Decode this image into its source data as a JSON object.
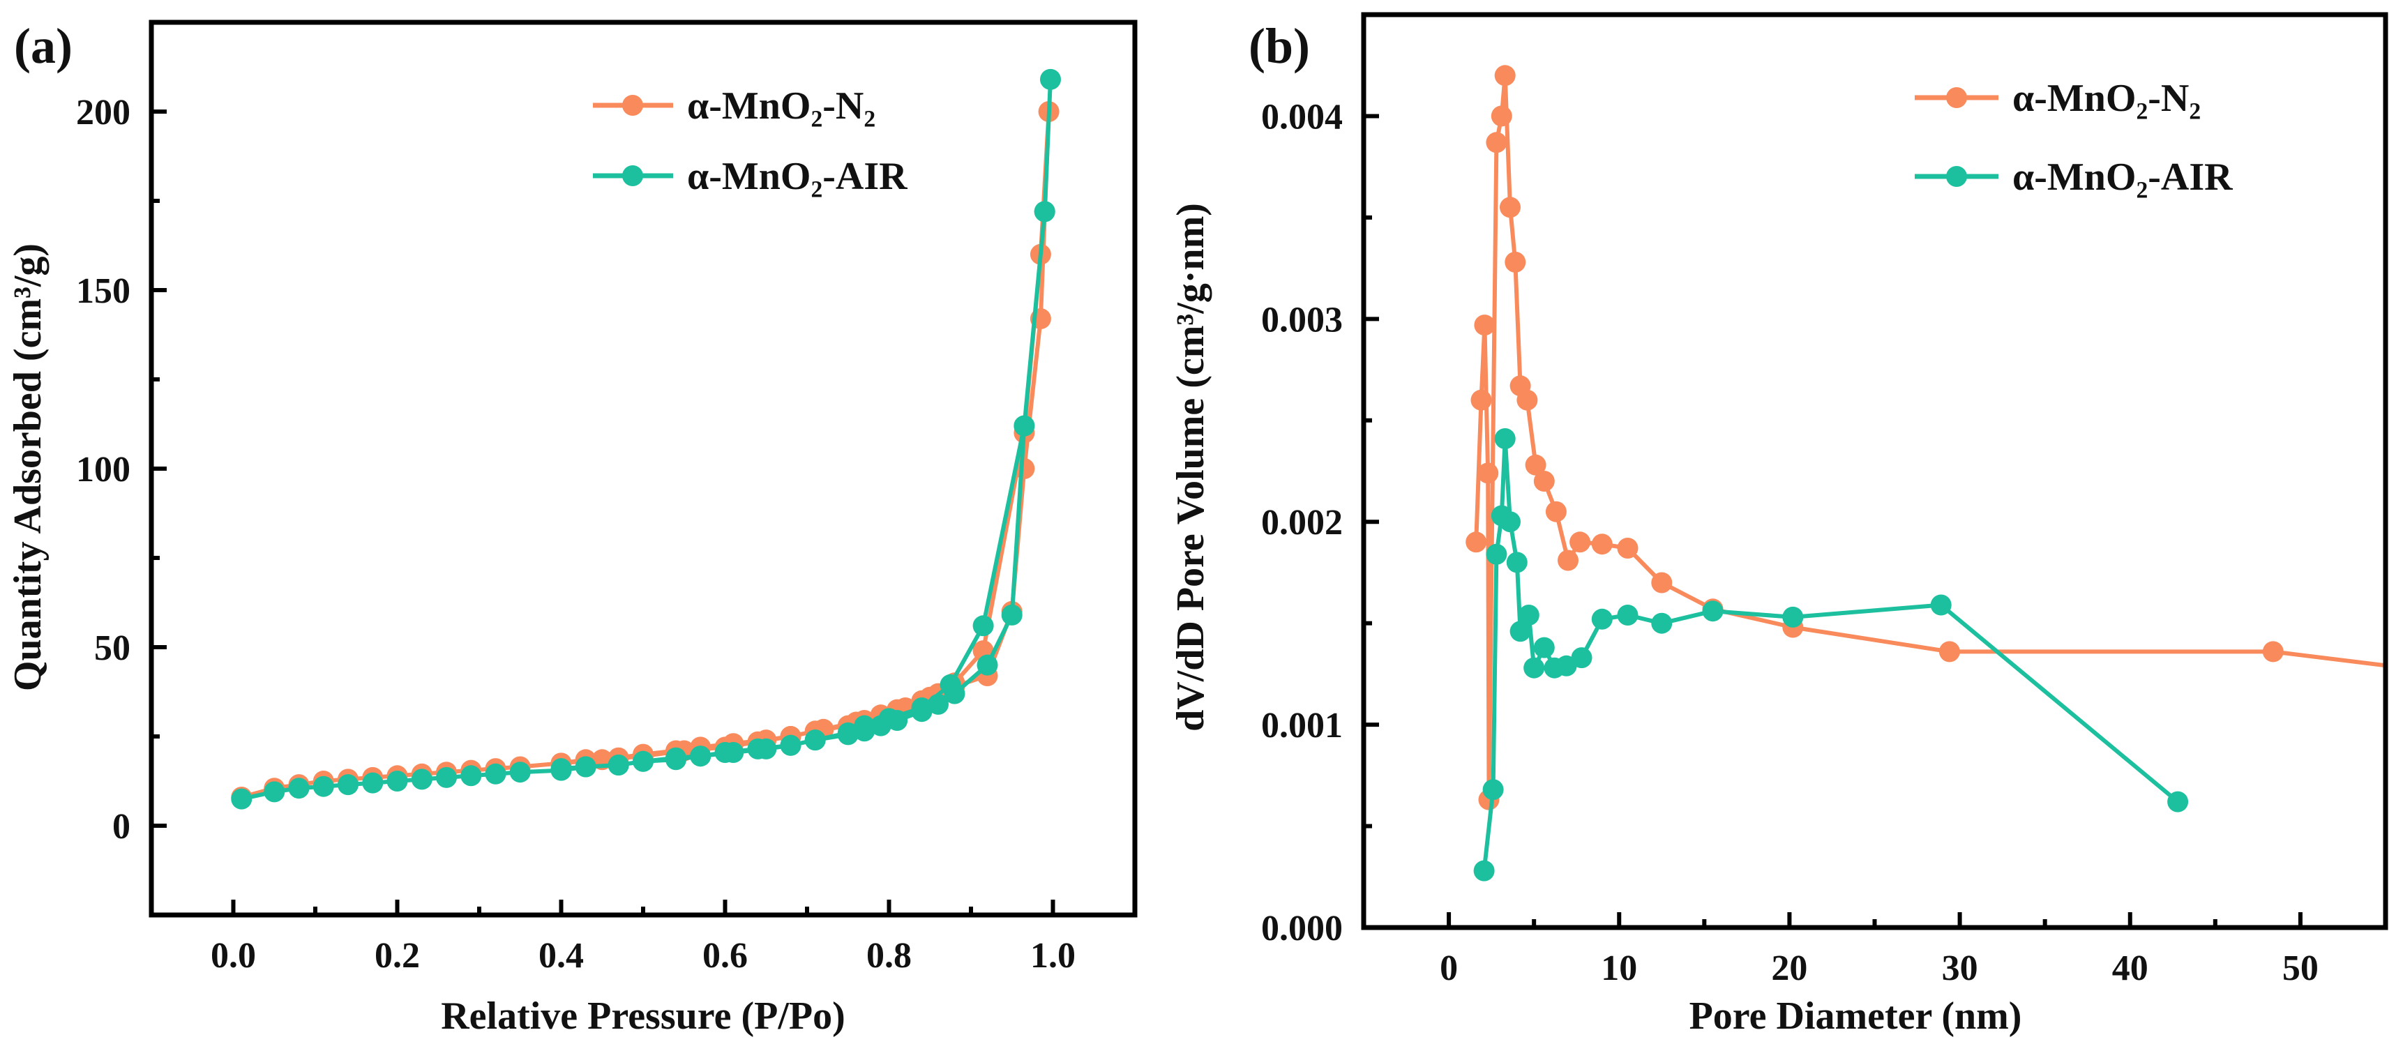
{
  "chart_data": [
    {
      "type": "line",
      "panel_label": "(a)",
      "title": "",
      "xlabel": "Relative Pressure (P/Po)",
      "ylabel": "Quantity Adsorbed (cm³/g)",
      "xlim": [
        -0.1,
        1.1
      ],
      "ylim": [
        -25,
        225
      ],
      "xticks": [
        0.0,
        0.2,
        0.4,
        0.6,
        0.8,
        1.0
      ],
      "xtick_labels": [
        "0.0",
        "0.2",
        "0.4",
        "0.6",
        "0.8",
        "1.0"
      ],
      "xminor_step": 0.1,
      "yticks": [
        0,
        50,
        100,
        150,
        200
      ],
      "ytick_labels": [
        "0",
        "50",
        "100",
        "150",
        "200"
      ],
      "yminor_step": 25,
      "grid": false,
      "legend_position": "top-right",
      "series": [
        {
          "name": "α-MnO₂-N₂",
          "color": "#f88a5c",
          "x": [
            0.01,
            0.05,
            0.08,
            0.11,
            0.14,
            0.17,
            0.2,
            0.23,
            0.26,
            0.29,
            0.32,
            0.35,
            0.4,
            0.43,
            0.47,
            0.5,
            0.54,
            0.57,
            0.61,
            0.65,
            0.68,
            0.71,
            0.75,
            0.77,
            0.79,
            0.81,
            0.84,
            0.86,
            0.88,
            0.92,
            0.95,
            0.965,
            0.985,
            0.995,
            0.985,
            0.965,
            0.915,
            0.88,
            0.85,
            0.82,
            0.79,
            0.76,
            0.72,
            0.68,
            0.64,
            0.6,
            0.55,
            0.5,
            0.45,
            0.4
          ],
          "y": [
            8,
            10.5,
            11.5,
            12.5,
            13,
            13.5,
            14,
            14.5,
            15,
            15.5,
            16,
            16.5,
            17.5,
            18.5,
            19,
            20,
            21,
            22,
            23,
            24,
            25,
            26.5,
            28,
            29.5,
            31,
            32.5,
            35,
            37,
            39,
            42,
            60,
            100,
            142,
            200,
            160,
            110,
            49,
            40,
            36,
            33,
            31,
            29,
            27,
            25,
            23.5,
            22,
            21,
            19.5,
            18.5,
            17.5
          ]
        },
        {
          "name": "α-MnO₂-AIR",
          "color": "#1cc09e",
          "x": [
            0.01,
            0.05,
            0.08,
            0.11,
            0.14,
            0.17,
            0.2,
            0.23,
            0.26,
            0.29,
            0.32,
            0.35,
            0.4,
            0.43,
            0.47,
            0.5,
            0.54,
            0.57,
            0.61,
            0.65,
            0.68,
            0.71,
            0.75,
            0.77,
            0.79,
            0.81,
            0.84,
            0.86,
            0.88,
            0.92,
            0.95,
            0.965,
            0.99,
            0.997,
            0.99,
            0.965,
            0.915,
            0.875,
            0.84,
            0.8,
            0.77,
            0.75,
            0.71,
            0.68,
            0.64,
            0.6,
            0.57,
            0.54,
            0.5,
            0.47,
            0.43,
            0.4
          ],
          "y": [
            7.5,
            9.5,
            10.5,
            11,
            11.5,
            12,
            12.5,
            13,
            13.5,
            14,
            14.5,
            15,
            15.5,
            16.5,
            17,
            18,
            19,
            19.5,
            20.5,
            21.5,
            22.5,
            24,
            25.5,
            26.5,
            28,
            29.5,
            32,
            34,
            37,
            45,
            59,
            112,
            172,
            209,
            172,
            112,
            56,
            39.5,
            33,
            30,
            28,
            26,
            24,
            22.5,
            21.5,
            20.5,
            19.5,
            18.5,
            18,
            17,
            16.5,
            16
          ]
        }
      ]
    },
    {
      "type": "line",
      "panel_label": "(b)",
      "title": "",
      "xlabel": "Pore Diameter (nm)",
      "ylabel": "dV/dD Pore Volume (cm³/g·nm)",
      "xlim": [
        -5,
        55
      ],
      "ylim": [
        0,
        0.0045
      ],
      "xticks": [
        0,
        10,
        20,
        30,
        40,
        50
      ],
      "xtick_labels": [
        "0",
        "10",
        "20",
        "30",
        "40",
        "50"
      ],
      "xminor_step": 5,
      "yticks": [
        0,
        0.001,
        0.002,
        0.003,
        0.004
      ],
      "ytick_labels": [
        "0.000",
        "0.001",
        "0.002",
        "0.003",
        "0.004"
      ],
      "yminor_step": 0.0005,
      "grid": false,
      "legend_position": "top-right",
      "series": [
        {
          "name": "α-MnO₂-N₂",
          "color": "#f88a5c",
          "x": [
            1.6,
            1.9,
            2.1,
            2.3,
            2.35,
            2.8,
            3.1,
            3.3,
            3.6,
            3.9,
            4.2,
            4.6,
            5.1,
            5.6,
            6.3,
            7.0,
            7.7,
            9.0,
            10.5,
            12.5,
            15.5,
            20.2,
            29.4,
            48.4,
            60
          ],
          "y": [
            0.0019,
            0.0026,
            0.00297,
            0.00224,
            0.00063,
            0.00387,
            0.004,
            0.0042,
            0.00355,
            0.00328,
            0.00267,
            0.0026,
            0.00228,
            0.0022,
            0.00205,
            0.00181,
            0.0019,
            0.00189,
            0.00187,
            0.0017,
            0.00157,
            0.00148,
            0.00136,
            0.00136,
            0.00124
          ]
        },
        {
          "name": "α-MnO₂-AIR",
          "color": "#1cc09e",
          "x": [
            2.07,
            2.6,
            2.8,
            3.1,
            3.3,
            3.6,
            4.0,
            4.2,
            4.7,
            5.0,
            5.6,
            6.2,
            6.9,
            7.8,
            9.0,
            10.5,
            12.5,
            15.5,
            20.2,
            28.9,
            42.8
          ],
          "y": [
            0.00028,
            0.00068,
            0.00184,
            0.00203,
            0.00241,
            0.002,
            0.0018,
            0.00146,
            0.00154,
            0.00128,
            0.00138,
            0.00128,
            0.00129,
            0.00133,
            0.00152,
            0.00154,
            0.0015,
            0.00156,
            0.00153,
            0.00159,
            0.00062
          ]
        }
      ]
    }
  ]
}
